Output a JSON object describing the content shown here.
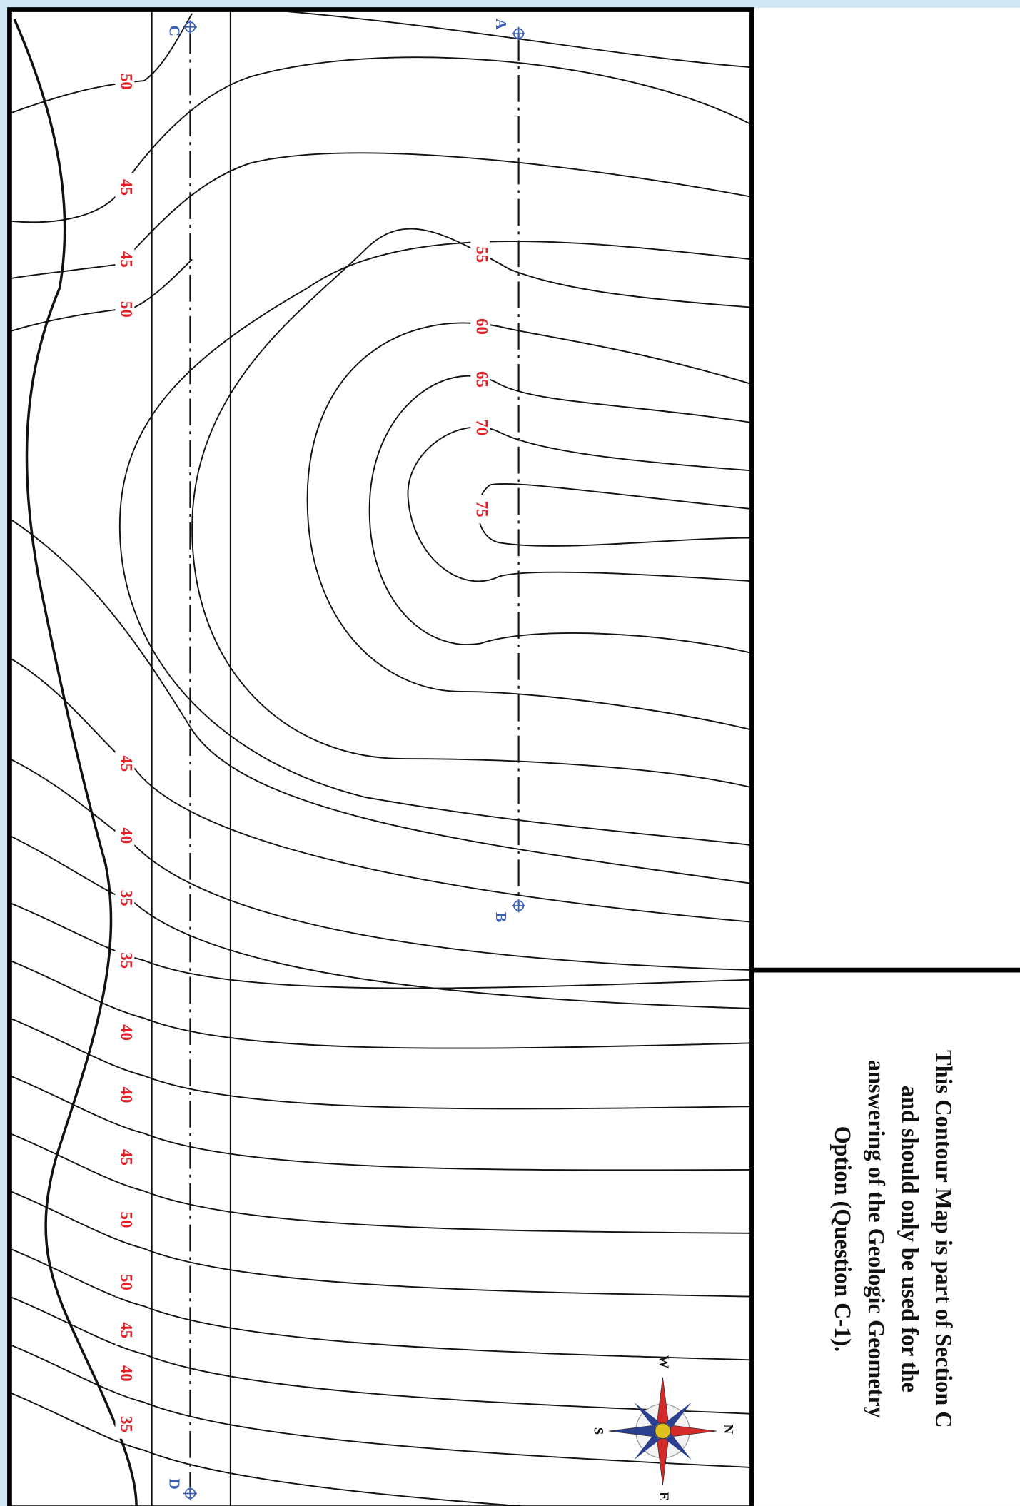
{
  "contour_labels": [
    "50",
    "45",
    "45",
    "50",
    "45",
    "40",
    "35",
    "35",
    "40",
    "40",
    "45",
    "50",
    "50",
    "45",
    "40",
    "35",
    "55",
    "60",
    "65",
    "70",
    "75"
  ],
  "section_points": [
    "A",
    "B",
    "C",
    "D"
  ],
  "compass": [
    "W",
    "N",
    "S",
    "E"
  ],
  "note": [
    "This Contour Map is part of Section C",
    "and should only be used for the",
    "answering of the Geologic Geometry",
    "Option (Question C-1)."
  ]
}
